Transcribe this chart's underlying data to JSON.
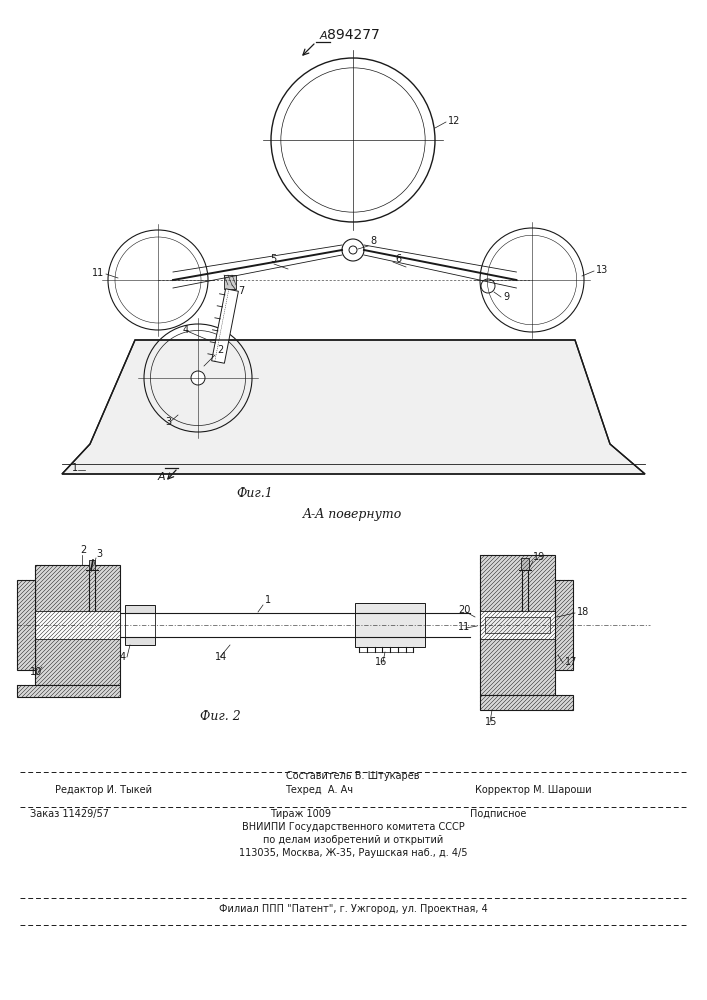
{
  "patent_number": "894277",
  "fig1_caption": "Фиг.1",
  "fig2_caption": "Фиг. 2",
  "fig2_title": "A-A повернуто",
  "footer_comp": "Составитель В. Штукарев",
  "footer_ed": "Редактор И. Тыкей",
  "footer_tech": "Техред  А. Ач",
  "footer_corr": "Корректор М. Шароши",
  "footer_order": "Заказ 11429/57",
  "footer_circ": "Тираж 1009",
  "footer_sub": "Подписное",
  "footer_org1": "ВНИИПИ Государственного комитета СССР",
  "footer_org2": "по делам изобретений и открытий",
  "footer_addr": "113035, Москва, Ж-35, Раушская наб., д. 4/5",
  "footer_fil": "Филиал ППП \"Патент\", г. Ужгород, ул. Проектная, 4",
  "lc": "#1a1a1a"
}
